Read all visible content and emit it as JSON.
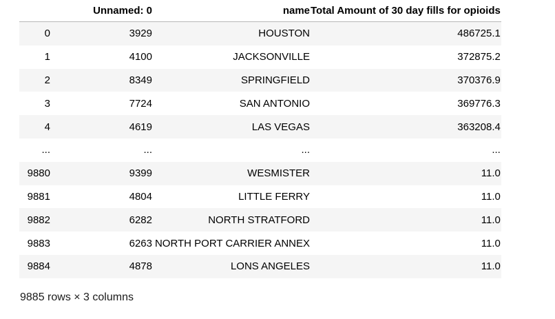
{
  "table": {
    "columns": {
      "index": "",
      "unnamed": "Unnamed: 0",
      "name": "name",
      "total": "Total Amount of 30 day fills for opioids"
    },
    "rows": [
      {
        "index": "0",
        "unnamed": "3929",
        "name": "HOUSTON",
        "total": "486725.1"
      },
      {
        "index": "1",
        "unnamed": "4100",
        "name": "JACKSONVILLE",
        "total": "372875.2"
      },
      {
        "index": "2",
        "unnamed": "8349",
        "name": "SPRINGFIELD",
        "total": "370376.9"
      },
      {
        "index": "3",
        "unnamed": "7724",
        "name": "SAN ANTONIO",
        "total": "369776.3"
      },
      {
        "index": "4",
        "unnamed": "4619",
        "name": "LAS VEGAS",
        "total": "363208.4"
      },
      {
        "index": "...",
        "unnamed": "...",
        "name": "...",
        "total": "..."
      },
      {
        "index": "9880",
        "unnamed": "9399",
        "name": "WESMISTER",
        "total": "11.0"
      },
      {
        "index": "9881",
        "unnamed": "4804",
        "name": "LITTLE FERRY",
        "total": "11.0"
      },
      {
        "index": "9882",
        "unnamed": "6282",
        "name": "NORTH STRATFORD",
        "total": "11.0"
      },
      {
        "index": "9883",
        "unnamed": "6263",
        "name": "NORTH PORT CARRIER ANNEX",
        "total": "11.0"
      },
      {
        "index": "9884",
        "unnamed": "4878",
        "name": "LONS ANGELES",
        "total": "11.0"
      }
    ]
  },
  "shape_text": "9885 rows × 3 columns"
}
